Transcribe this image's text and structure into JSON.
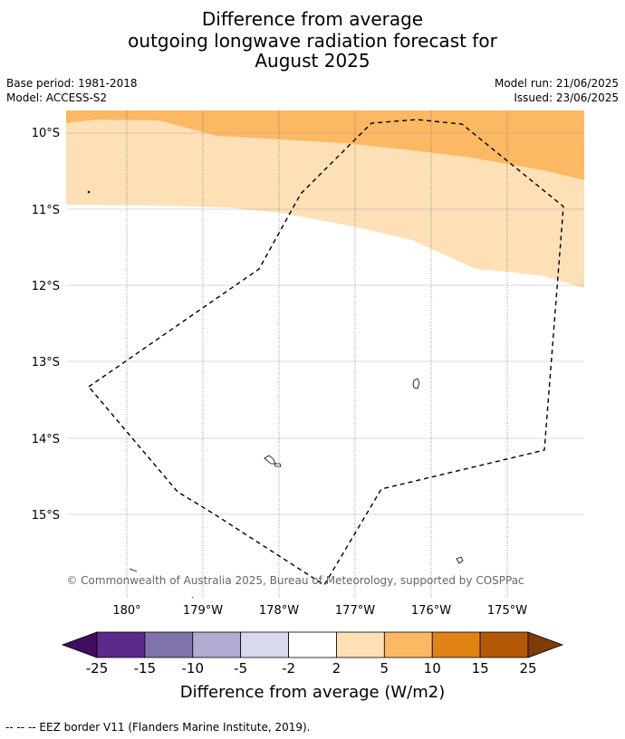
{
  "title": {
    "line1": "Difference from average",
    "line2": "outgoing longwave radiation forecast for",
    "line3": "August 2025"
  },
  "meta": {
    "base_period": "Base period: 1981-2018",
    "model": "Model: ACCESS-S2",
    "model_run": "Model run: 21/06/2025",
    "issued": "Issued: 23/06/2025"
  },
  "map": {
    "lat_labels": [
      "10°S",
      "11°S",
      "12°S",
      "13°S",
      "14°S",
      "15°S"
    ],
    "lon_labels": [
      "180°",
      "179°W",
      "178°W",
      "177°W",
      "176°W",
      "175°W"
    ],
    "copyright": "© Commonwealth of Australia 2025, Bureau of Meteorology, supported by COSPPac",
    "colors": {
      "anomaly_2_5": "#fde0b6",
      "anomaly_5_10": "#fdb863",
      "coastline": "#000000",
      "eez_border": "#000000"
    }
  },
  "colorbar": {
    "label": "Difference from average (W/m2)",
    "ticks": [
      "-25",
      "-15",
      "-10",
      "-5",
      "-2",
      "2",
      "5",
      "10",
      "15",
      "25"
    ],
    "colors": [
      "#3f0f5e",
      "#5b2a8a",
      "#8073ac",
      "#b2abd2",
      "#d8daeb",
      "#ffffff",
      "#fde0b6",
      "#fdb863",
      "#e08214",
      "#b35806",
      "#7f3b08"
    ]
  },
  "footnote": "--  --  -- EEZ border V11 (Flanders Marine Institute, 2019)."
}
